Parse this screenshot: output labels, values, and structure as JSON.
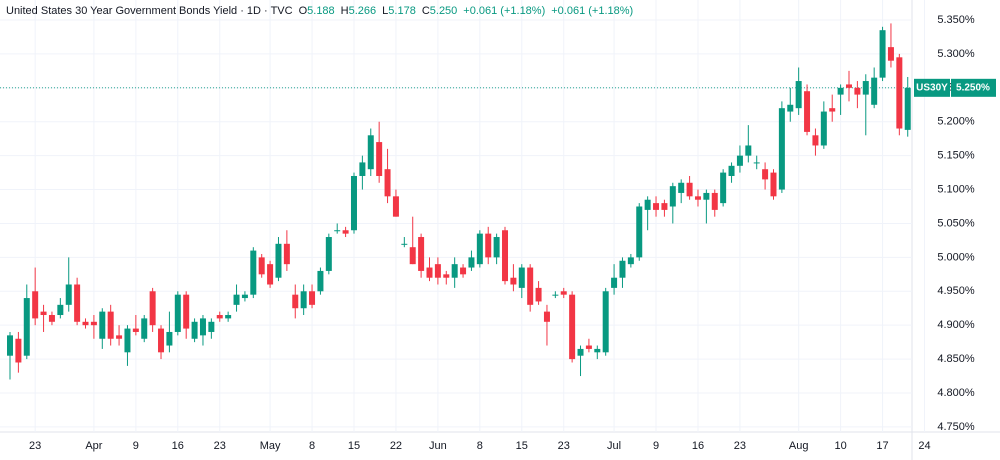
{
  "chart_data": {
    "type": "candlestick",
    "header": {
      "title": "United States 30 Year Government Bonds Yield · 1D · TVC",
      "items": [
        {
          "label": "O",
          "value": "5.188"
        },
        {
          "label": "H",
          "value": "5.266"
        },
        {
          "label": "L",
          "value": "5.178"
        },
        {
          "label": "C",
          "value": "5.250"
        }
      ],
      "changes": [
        "+0.061 (+1.18%)",
        "+0.061 (+1.18%)"
      ]
    },
    "up_color": "#089981",
    "down_color": "#f23645",
    "categories": [
      null,
      null,
      null,
      "23",
      null,
      null,
      null,
      null,
      null,
      null,
      "Apr",
      null,
      null,
      null,
      null,
      "9",
      null,
      null,
      null,
      null,
      "16",
      null,
      null,
      null,
      null,
      "23",
      null,
      null,
      null,
      null,
      null,
      "May",
      null,
      null,
      null,
      null,
      "8",
      null,
      null,
      null,
      null,
      "15",
      null,
      null,
      null,
      null,
      "22",
      null,
      null,
      null,
      null,
      "Jun",
      null,
      null,
      null,
      null,
      "8",
      null,
      null,
      null,
      null,
      "15",
      null,
      null,
      null,
      null,
      "23",
      null,
      null,
      null,
      null,
      null,
      "Jul",
      null,
      null,
      null,
      null,
      "9",
      null,
      null,
      null,
      null,
      "16",
      null,
      null,
      null,
      null,
      "23",
      null,
      null,
      null,
      null,
      null,
      null,
      "Aug",
      null,
      null,
      null,
      null,
      "10",
      null,
      null,
      null,
      null,
      "17",
      null,
      null,
      null,
      null,
      "24"
    ],
    "open": [
      4.855,
      4.88,
      4.855,
      4.95,
      4.92,
      4.915,
      4.915,
      4.93,
      4.96,
      4.905,
      4.905,
      4.88,
      4.92,
      4.885,
      4.86,
      4.895,
      4.88,
      4.95,
      4.895,
      4.87,
      4.89,
      4.945,
      4.88,
      4.885,
      4.89,
      4.915,
      4.91,
      4.93,
      4.94,
      4.945,
      5.0,
      4.99,
      4.97,
      5.02,
      4.945,
      4.925,
      4.95,
      4.95,
      4.98,
      5.04,
      5.04,
      5.04,
      5.12,
      5.13,
      5.17,
      5.13,
      5.09,
      5.02,
      5.015,
      5.03,
      4.985,
      4.99,
      4.975,
      4.97,
      4.985,
      4.985,
      4.99,
      5.035,
      5.0,
      5.04,
      4.97,
      4.955,
      4.985,
      4.955,
      4.92,
      4.945,
      4.95,
      4.945,
      4.855,
      4.87,
      4.86,
      4.86,
      4.955,
      4.97,
      4.99,
      5.0,
      5.07,
      5.08,
      5.08,
      5.075,
      5.095,
      5.11,
      5.09,
      5.085,
      5.095,
      5.08,
      5.12,
      5.135,
      5.15,
      5.14,
      5.13,
      5.125,
      5.1,
      5.215,
      5.22,
      5.245,
      5.18,
      5.165,
      5.22,
      5.24,
      5.255,
      5.25,
      5.24,
      5.225,
      5.265,
      5.31,
      5.295,
      5.188,
      null,
      null
    ],
    "high": [
      4.89,
      4.89,
      4.96,
      4.985,
      4.93,
      4.92,
      4.94,
      5.0,
      4.97,
      4.91,
      4.915,
      4.925,
      4.93,
      4.9,
      4.9,
      4.915,
      4.915,
      4.955,
      4.9,
      4.92,
      4.95,
      4.95,
      4.91,
      4.915,
      4.91,
      4.92,
      4.92,
      4.96,
      4.95,
      5.015,
      5.005,
      4.995,
      5.03,
      5.04,
      4.96,
      4.96,
      4.96,
      4.985,
      5.035,
      5.05,
      5.045,
      5.125,
      5.15,
      5.19,
      5.2,
      5.16,
      5.1,
      5.03,
      5.06,
      5.035,
      5.0,
      5.0,
      4.98,
      5.0,
      4.99,
      5.01,
      5.04,
      5.045,
      5.035,
      5.045,
      4.99,
      4.99,
      4.99,
      4.965,
      4.93,
      4.95,
      4.955,
      4.95,
      4.87,
      4.88,
      4.87,
      4.955,
      4.99,
      5.0,
      5.005,
      5.08,
      5.09,
      5.09,
      5.085,
      5.11,
      5.115,
      5.12,
      5.1,
      5.1,
      5.1,
      5.13,
      5.14,
      5.165,
      5.195,
      5.15,
      5.14,
      5.13,
      5.23,
      5.25,
      5.28,
      5.255,
      5.19,
      5.23,
      5.24,
      5.255,
      5.275,
      5.26,
      5.27,
      5.28,
      5.34,
      5.345,
      5.3,
      5.266,
      null,
      null
    ],
    "low": [
      4.82,
      4.83,
      4.85,
      4.9,
      4.89,
      4.9,
      4.91,
      4.92,
      4.9,
      4.895,
      4.88,
      4.865,
      4.87,
      4.87,
      4.84,
      4.885,
      4.875,
      4.89,
      4.85,
      4.86,
      4.885,
      4.88,
      4.875,
      4.87,
      4.88,
      4.905,
      4.905,
      4.92,
      4.935,
      4.94,
      4.97,
      4.955,
      4.965,
      4.98,
      4.91,
      4.915,
      4.925,
      4.945,
      4.975,
      5.035,
      5.03,
      5.035,
      5.1,
      5.12,
      5.11,
      5.08,
      5.06,
      5.015,
      4.99,
      4.97,
      4.965,
      4.96,
      4.96,
      4.955,
      4.97,
      4.98,
      4.985,
      4.99,
      4.99,
      4.96,
      4.95,
      4.94,
      4.92,
      4.93,
      4.87,
      4.94,
      4.94,
      4.845,
      4.825,
      4.86,
      4.85,
      4.855,
      4.945,
      4.955,
      4.985,
      4.995,
      5.04,
      5.06,
      5.06,
      5.05,
      5.08,
      5.085,
      5.075,
      5.05,
      5.06,
      5.075,
      5.11,
      5.125,
      5.14,
      5.13,
      5.1,
      5.085,
      5.095,
      5.2,
      5.21,
      5.18,
      5.15,
      5.16,
      5.2,
      5.21,
      5.23,
      5.22,
      5.18,
      5.22,
      5.26,
      5.28,
      5.18,
      5.178,
      null,
      null
    ],
    "close": [
      4.885,
      4.845,
      4.94,
      4.91,
      4.915,
      4.905,
      4.93,
      4.96,
      4.905,
      4.9,
      4.9,
      4.92,
      4.88,
      4.88,
      4.895,
      4.89,
      4.91,
      4.9,
      4.86,
      4.89,
      4.945,
      4.895,
      4.905,
      4.91,
      4.905,
      4.91,
      4.915,
      4.945,
      4.945,
      5.01,
      4.975,
      4.96,
      5.02,
      4.99,
      4.925,
      4.95,
      4.93,
      4.98,
      5.03,
      5.04,
      5.035,
      5.12,
      5.14,
      5.18,
      5.12,
      5.09,
      5.06,
      5.02,
      4.99,
      4.98,
      4.97,
      4.97,
      4.97,
      4.99,
      4.975,
      5.0,
      5.035,
      5.0,
      5.03,
      4.965,
      4.96,
      4.985,
      4.93,
      4.935,
      4.905,
      4.945,
      4.945,
      4.85,
      4.865,
      4.865,
      4.865,
      4.95,
      4.97,
      4.995,
      5.0,
      5.075,
      5.085,
      5.07,
      5.07,
      5.105,
      5.11,
      5.09,
      5.085,
      5.095,
      5.07,
      5.125,
      5.135,
      5.15,
      5.165,
      5.14,
      5.115,
      5.09,
      5.22,
      5.225,
      5.26,
      5.185,
      5.165,
      5.215,
      5.215,
      5.25,
      5.25,
      5.24,
      5.26,
      5.265,
      5.335,
      5.29,
      5.19,
      5.25,
      null,
      null
    ],
    "last_price": {
      "symbol": "US30Y",
      "value": 5.25,
      "label": "5.250%"
    },
    "ylim": [
      4.7425,
      5.3795
    ],
    "yticks": [
      {
        "value": 5.35,
        "label": "5.350%"
      },
      {
        "value": 5.3,
        "label": "5.300%"
      },
      {
        "value": 5.25,
        "label": "5.250%"
      },
      {
        "value": 5.2,
        "label": "5.200%"
      },
      {
        "value": 5.15,
        "label": "5.150%"
      },
      {
        "value": 5.1,
        "label": "5.100%"
      },
      {
        "value": 5.05,
        "label": "5.050%"
      },
      {
        "value": 5.0,
        "label": "5.000%"
      },
      {
        "value": 4.95,
        "label": "4.950%"
      },
      {
        "value": 4.9,
        "label": "4.900%"
      },
      {
        "value": 4.85,
        "label": "4.850%"
      },
      {
        "value": 4.8,
        "label": "4.800%"
      },
      {
        "value": 4.75,
        "label": "4.750%"
      }
    ],
    "grid": true
  }
}
